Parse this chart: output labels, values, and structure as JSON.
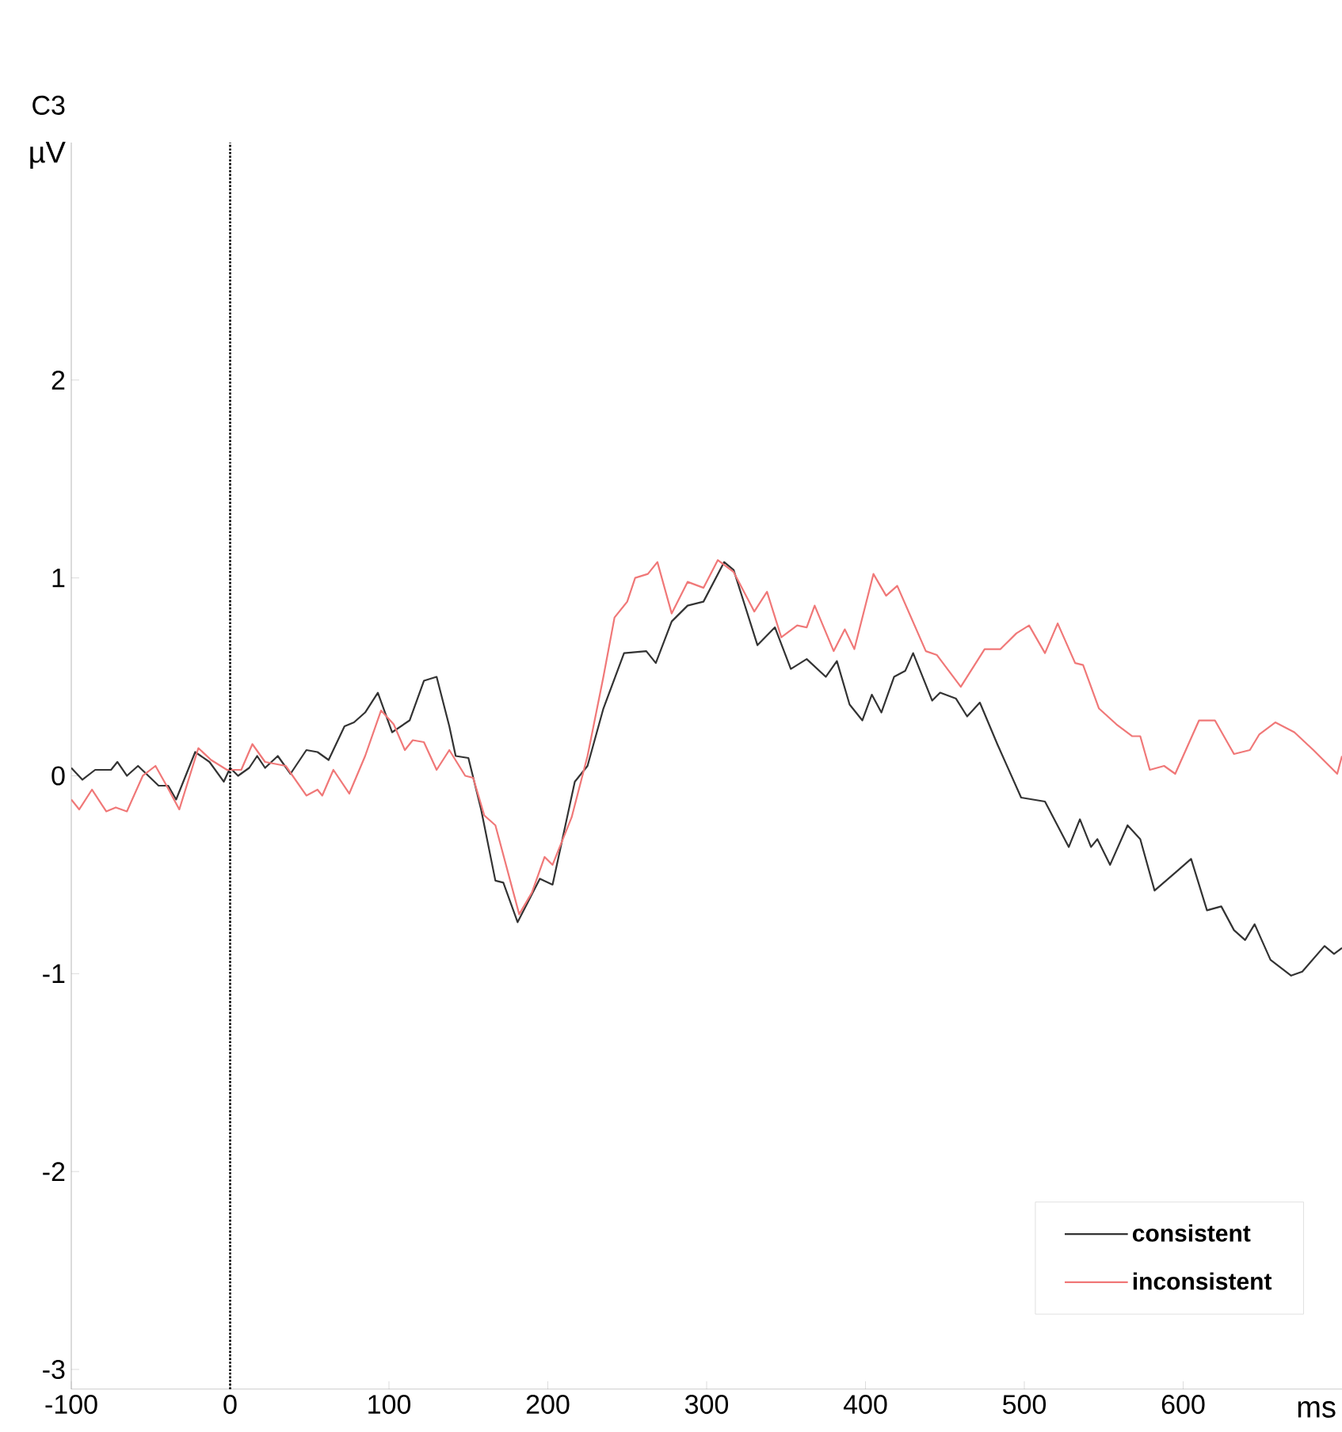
{
  "chart_data": {
    "type": "line",
    "title": "C3",
    "ylabel": "µV",
    "xlabel": "ms",
    "xlim": [
      -100,
      700
    ],
    "ylim": [
      -3.1,
      3.2
    ],
    "xticks": [
      -100,
      0,
      100,
      200,
      300,
      400,
      500,
      600
    ],
    "yticks": [
      -3,
      -2,
      -1,
      0,
      1,
      2
    ],
    "legend": "bottom right",
    "grid": false,
    "ref_lines": [
      {
        "axis": "x",
        "value": 0,
        "color": "#000000",
        "line_style": "dotted"
      }
    ],
    "series": [
      {
        "name": "consistent",
        "color": "#333333",
        "x": [
          -100,
          -93,
          -85,
          -75,
          -71,
          -65,
          -58,
          -45,
          -39,
          -34,
          -22,
          -13,
          -4,
          0,
          5,
          12,
          17,
          22,
          30,
          38,
          48,
          55,
          62,
          72,
          78,
          85,
          93,
          102,
          113,
          122,
          130,
          138,
          142,
          150,
          158,
          167,
          172,
          181,
          195,
          203,
          217,
          225,
          235,
          248,
          262,
          268,
          278,
          288,
          298,
          311,
          317,
          332,
          343,
          353,
          363,
          375,
          382,
          390,
          398,
          404,
          410,
          418,
          425,
          430,
          442,
          447,
          457,
          464,
          472,
          483,
          498,
          513,
          528,
          535,
          542,
          546,
          554,
          565,
          573,
          582,
          595,
          605,
          615,
          624,
          632,
          639,
          645,
          655,
          668,
          675,
          689,
          695,
          700
        ],
        "values": [
          0.04,
          -0.02,
          0.03,
          0.03,
          0.07,
          0.0,
          0.05,
          -0.05,
          -0.05,
          -0.12,
          0.12,
          0.07,
          -0.03,
          0.04,
          0.0,
          0.04,
          0.1,
          0.04,
          0.1,
          0.01,
          0.13,
          0.12,
          0.08,
          0.25,
          0.27,
          0.32,
          0.42,
          0.22,
          0.28,
          0.48,
          0.5,
          0.25,
          0.1,
          0.09,
          -0.17,
          -0.53,
          -0.54,
          -0.74,
          -0.52,
          -0.55,
          -0.03,
          0.05,
          0.34,
          0.62,
          0.63,
          0.57,
          0.78,
          0.86,
          0.88,
          1.08,
          1.04,
          0.66,
          0.75,
          0.54,
          0.59,
          0.5,
          0.58,
          0.36,
          0.28,
          0.41,
          0.32,
          0.5,
          0.53,
          0.62,
          0.38,
          0.42,
          0.39,
          0.3,
          0.37,
          0.16,
          -0.11,
          -0.13,
          -0.36,
          -0.22,
          -0.36,
          -0.32,
          -0.45,
          -0.25,
          -0.32,
          -0.58,
          -0.49,
          -0.42,
          -0.68,
          -0.66,
          -0.78,
          -0.83,
          -0.75,
          -0.93,
          -1.01,
          -0.99,
          -0.86,
          -0.9,
          -0.87
        ]
      },
      {
        "name": "inconsistent",
        "color": "#f07878",
        "x": [
          -100,
          -95,
          -87,
          -78,
          -72,
          -65,
          -55,
          -47,
          -40,
          -32,
          -20,
          -12,
          -2,
          7,
          14,
          22,
          35,
          48,
          55,
          58,
          65,
          75,
          85,
          95,
          103,
          110,
          115,
          122,
          130,
          138,
          148,
          153,
          160,
          167,
          182,
          190,
          198,
          203,
          215,
          225,
          235,
          242,
          250,
          255,
          263,
          269,
          278,
          288,
          298,
          307,
          317,
          330,
          338,
          347,
          357,
          363,
          368,
          380,
          387,
          393,
          405,
          413,
          420,
          438,
          445,
          460,
          475,
          485,
          495,
          503,
          513,
          521,
          532,
          537,
          547,
          558,
          568,
          573,
          579,
          588,
          595,
          610,
          620,
          632,
          642,
          648,
          658,
          670,
          682,
          697,
          700
        ],
        "values": [
          -0.12,
          -0.17,
          -0.07,
          -0.18,
          -0.16,
          -0.18,
          0.0,
          0.05,
          -0.05,
          -0.17,
          0.14,
          0.08,
          0.03,
          0.03,
          0.16,
          0.07,
          0.05,
          -0.1,
          -0.07,
          -0.1,
          0.03,
          -0.09,
          0.1,
          0.33,
          0.26,
          0.13,
          0.18,
          0.17,
          0.03,
          0.13,
          0.0,
          -0.01,
          -0.2,
          -0.25,
          -0.7,
          -0.59,
          -0.41,
          -0.45,
          -0.21,
          0.1,
          0.5,
          0.8,
          0.88,
          1.0,
          1.02,
          1.08,
          0.82,
          0.98,
          0.95,
          1.09,
          1.03,
          0.83,
          0.93,
          0.7,
          0.76,
          0.75,
          0.86,
          0.63,
          0.74,
          0.64,
          1.02,
          0.91,
          0.96,
          0.63,
          0.61,
          0.45,
          0.64,
          0.64,
          0.72,
          0.76,
          0.62,
          0.77,
          0.57,
          0.56,
          0.34,
          0.26,
          0.2,
          0.2,
          0.03,
          0.05,
          0.01,
          0.28,
          0.28,
          0.11,
          0.13,
          0.21,
          0.27,
          0.22,
          0.13,
          0.01,
          0.1
        ]
      }
    ]
  }
}
